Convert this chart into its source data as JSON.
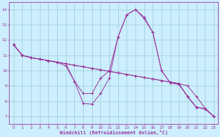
{
  "xlabel": "Windchill (Refroidissement éolien,°C)",
  "bg_color": "#cceeff",
  "line_color": "#993399",
  "grid_color": "#99cccc",
  "xlim": [
    -0.5,
    23.5
  ],
  "ylim": [
    6.5,
    14.5
  ],
  "xticks": [
    0,
    1,
    2,
    3,
    4,
    5,
    6,
    7,
    8,
    9,
    10,
    11,
    12,
    13,
    14,
    15,
    16,
    17,
    18,
    19,
    20,
    21,
    22,
    23
  ],
  "yticks": [
    7,
    8,
    9,
    10,
    11,
    12,
    13,
    14
  ],
  "line1_x": [
    0,
    1,
    2,
    3,
    4,
    5,
    6,
    7,
    8,
    9,
    10,
    11,
    12,
    13,
    14,
    15,
    16,
    17,
    18,
    19,
    20,
    21,
    22,
    23
  ],
  "line1_y": [
    11.7,
    11.0,
    10.85,
    10.75,
    10.65,
    10.55,
    10.45,
    10.35,
    10.25,
    10.15,
    10.05,
    9.95,
    9.85,
    9.75,
    9.65,
    9.55,
    9.45,
    9.35,
    9.25,
    9.15,
    8.3,
    7.6,
    7.5,
    7.0
  ],
  "line2_x": [
    0,
    1,
    2,
    3,
    4,
    5,
    6,
    7,
    8,
    9,
    10,
    11,
    12,
    13,
    14,
    15,
    16,
    17,
    18,
    19,
    20,
    21,
    22,
    23
  ],
  "line2_y": [
    11.7,
    11.0,
    10.85,
    10.75,
    10.65,
    10.55,
    10.45,
    9.3,
    8.5,
    8.5,
    9.5,
    10.0,
    12.2,
    13.65,
    14.0,
    13.5,
    12.5,
    10.0,
    9.2,
    9.1,
    8.3,
    7.6,
    7.5,
    7.0
  ],
  "line3_x": [
    0,
    1,
    2,
    3,
    4,
    5,
    6,
    7,
    8,
    9,
    10,
    11,
    12,
    13,
    14,
    15,
    16,
    17,
    18,
    19,
    20,
    21,
    22,
    23
  ],
  "line3_y": [
    11.7,
    11.0,
    10.85,
    10.75,
    10.65,
    10.55,
    10.3,
    9.3,
    7.85,
    7.8,
    8.5,
    9.5,
    12.2,
    13.65,
    14.0,
    13.4,
    12.5,
    10.0,
    9.2,
    9.1,
    8.3,
    7.6,
    7.5,
    7.0
  ],
  "line4_x": [
    0,
    1,
    2,
    3,
    4,
    5,
    6,
    7,
    8,
    9,
    10,
    11,
    12,
    13,
    14,
    15,
    16,
    17,
    18,
    19,
    20,
    21,
    22,
    23
  ],
  "line4_y": [
    11.7,
    11.0,
    10.85,
    10.75,
    10.65,
    10.55,
    10.45,
    10.35,
    10.25,
    10.15,
    10.05,
    9.95,
    9.85,
    9.75,
    9.65,
    9.55,
    9.45,
    9.35,
    9.25,
    9.15,
    9.0,
    8.3,
    7.55,
    7.0
  ]
}
